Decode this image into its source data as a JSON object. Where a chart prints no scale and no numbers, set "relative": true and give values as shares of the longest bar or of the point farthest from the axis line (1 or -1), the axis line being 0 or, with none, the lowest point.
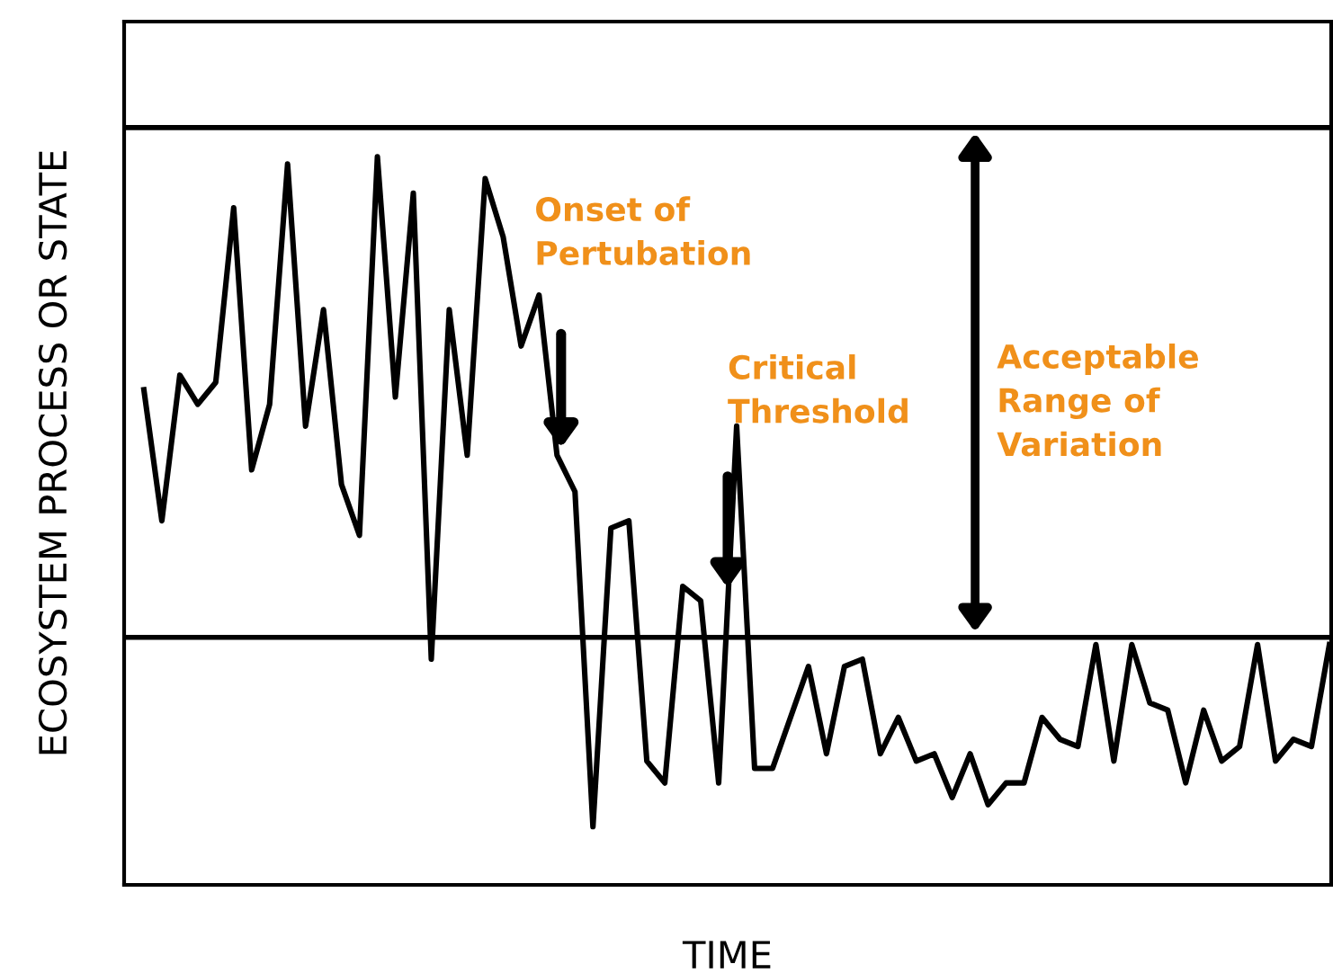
{
  "chart_data": {
    "type": "line",
    "relative": true,
    "xlabel": "TIME",
    "ylabel": "ECOSYSTEM PROCESS OR STATE",
    "categories": [
      null,
      null,
      null,
      null,
      null,
      null,
      null,
      null,
      null,
      null,
      null,
      null,
      null,
      null,
      null,
      null,
      null,
      null,
      null,
      null,
      null,
      null,
      null,
      null,
      null,
      null,
      null,
      null,
      null,
      null,
      null,
      null,
      null,
      null,
      null,
      null,
      null,
      null,
      null,
      null,
      null,
      null,
      null,
      null,
      null,
      null,
      null,
      null,
      null,
      null,
      null,
      null,
      null,
      null,
      null,
      null,
      null,
      null,
      null,
      null,
      null,
      null,
      null,
      null,
      null,
      null,
      null
    ],
    "series": [
      {
        "color": "#000000",
        "values": [
          0.68,
          0.5,
          0.7,
          0.66,
          0.69,
          0.93,
          0.57,
          0.66,
          0.99,
          0.63,
          0.79,
          0.55,
          0.48,
          1.0,
          0.67,
          0.95,
          0.31,
          0.79,
          0.59,
          0.97,
          0.89,
          0.74,
          0.81,
          0.59,
          0.54,
          0.08,
          0.49,
          0.5,
          0.17,
          0.14,
          0.41,
          0.39,
          0.14,
          0.63,
          0.16,
          0.16,
          0.23,
          0.3,
          0.18,
          0.3,
          0.31,
          0.18,
          0.23,
          0.17,
          0.18,
          0.12,
          0.18,
          0.11,
          0.14,
          0.14,
          0.23,
          0.2,
          0.19,
          0.33,
          0.17,
          0.33,
          0.25,
          0.24,
          0.14,
          0.24,
          0.17,
          0.19,
          0.33,
          0.17,
          0.2,
          0.19,
          0.33
        ]
      }
    ],
    "ref_lines": [
      {
        "axis": "y",
        "value": 1.04,
        "color": "#000000"
      },
      {
        "axis": "y",
        "value": 0.34,
        "color": "#000000"
      }
    ],
    "annotations": [
      "Onset of Pertubation",
      "Critical Threshold",
      "Acceptable Range of Variation"
    ],
    "marker": "none",
    "line_style": "solid",
    "legend": false,
    "tick_labels": false
  }
}
